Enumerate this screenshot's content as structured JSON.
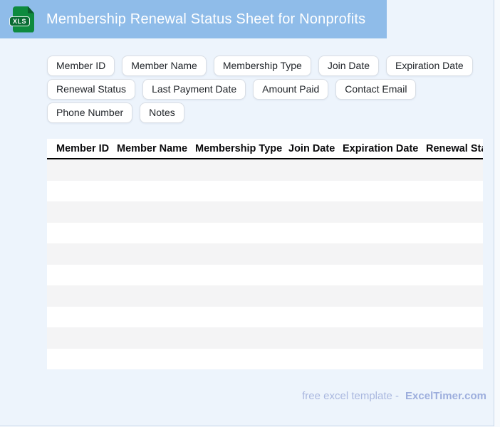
{
  "header": {
    "title": "Membership Renewal Status Sheet for Nonprofits",
    "icon_label": "XLS"
  },
  "chips": [
    "Member ID",
    "Member Name",
    "Membership Type",
    "Join Date",
    "Expiration Date",
    "Renewal Status",
    "Last Payment Date",
    "Amount Paid",
    "Contact Email",
    "Phone Number",
    "Notes"
  ],
  "table": {
    "columns": [
      "Member ID",
      "Member Name",
      "Membership Type",
      "Join Date",
      "Expiration Date",
      "Renewal Status"
    ],
    "row_count": 10
  },
  "footer": {
    "text": "free excel template -",
    "brand": "ExcelTimer.com"
  },
  "colors": {
    "header_bg": "#8FBCE9",
    "page_bg": "#EDF4FC",
    "card_border": "#C9D8EA",
    "icon_green": "#0E8A3E",
    "icon_badge": "#0A6B33",
    "stripe": "#F4F4F5",
    "chip_border": "#D9DEE5",
    "title_text": "#FFFFFF",
    "table_header_text": "#0B0B0D",
    "table_header_border": "#000000",
    "footer_text": "#A9B7DF",
    "brand_text": "#9DAEDD"
  }
}
